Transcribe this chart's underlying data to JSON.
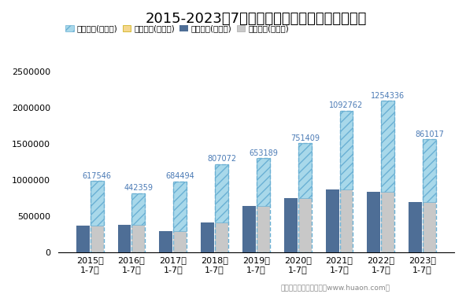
{
  "title": "2015-2023年7月重庆西永综合保税区进出口差额",
  "categories": [
    "2015年\n1-7月",
    "2016年\n1-7月",
    "2017年\n1-7月",
    "2018年\n1-7月",
    "2019年\n1-7月",
    "2020年\n1-7月",
    "2021年\n1-7月",
    "2022年\n1-7月",
    "2023年\n1-7月"
  ],
  "imports": [
    370000,
    382000,
    300000,
    415000,
    647000,
    757000,
    868000,
    840000,
    700000
  ],
  "exports": [
    987546,
    822359,
    984494,
    1222072,
    1300189,
    1508409,
    1960762,
    2094336,
    1561017
  ],
  "surplus": [
    617546,
    442359,
    684494,
    807072,
    653189,
    751409,
    1092762,
    1254336,
    861017
  ],
  "surplus_labels": [
    "617546",
    "442359",
    "684494",
    "807072",
    "653189",
    "751409",
    "1092762",
    "1254336",
    "861017"
  ],
  "import_color": "#4e6e96",
  "export_solid_color": "#c8c8c8",
  "surplus_hatch_color": "#a8d8ea",
  "surplus_hatch": "///",
  "surplus_border_color": "#6ab0d4",
  "deficit_legend_color": "#f5d78e",
  "annotation_color": "#4a7ab5",
  "ylim": [
    0,
    2750000
  ],
  "yticks": [
    0,
    500000,
    1000000,
    1500000,
    2000000,
    2500000
  ],
  "legend_labels": [
    "贸易顺差(万美元)",
    "贸易逆差(万美元)",
    "进口总额(万美元)",
    "出口总额(万美元)"
  ],
  "footer": "制图：华经产业研究院（www.huaon.com）",
  "title_fontsize": 13,
  "tick_fontsize": 8,
  "annotation_fontsize": 7,
  "legend_fontsize": 7.5,
  "background_color": "#ffffff"
}
